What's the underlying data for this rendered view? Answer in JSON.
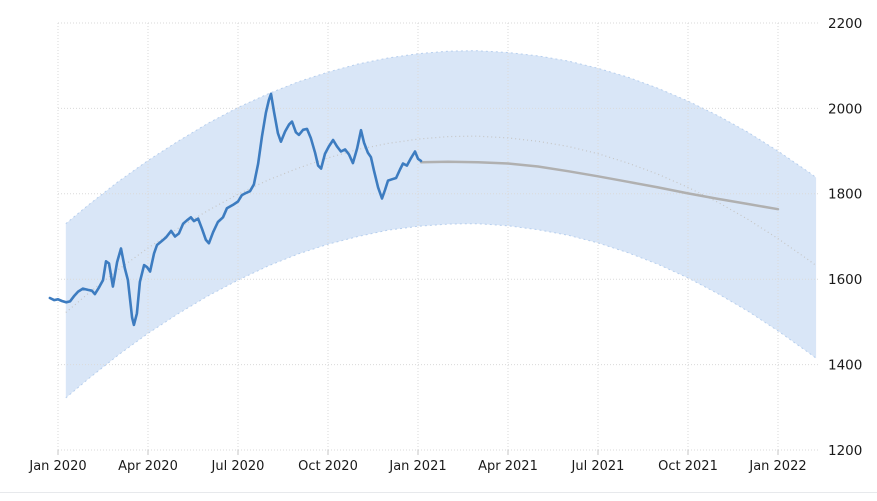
{
  "chart": {
    "name": "price-forecast-chart",
    "colors": {
      "background": "#ffffff",
      "history_line": "#3d7cc0",
      "forecast_line": "#b0b0b0",
      "trend_line": "#c6c6c6",
      "band_fill": "#d9e6f7",
      "band_edge": "#b7cfee",
      "grid": "#dadada",
      "tick": "#c5c5c5",
      "text": "#1a1a1a",
      "divider": "#e7e9ec"
    }
  },
  "chart_data": {
    "type": "line",
    "title": "",
    "xlabel": "",
    "ylabel": "",
    "legend": "none",
    "grid": "dotted",
    "x_unit": "months since Jan 2020",
    "ylim": [
      1200,
      2200
    ],
    "xlim": [
      -1,
      26.6
    ],
    "y_ticks": [
      1200,
      1400,
      1600,
      1800,
      2000,
      2200
    ],
    "x_ticks": [
      {
        "m": 0,
        "label": "Jan 2020"
      },
      {
        "m": 3,
        "label": "Apr 2020"
      },
      {
        "m": 6,
        "label": "Jul 2020"
      },
      {
        "m": 9,
        "label": "Oct 2020"
      },
      {
        "m": 12,
        "label": "Jan 2021"
      },
      {
        "m": 15,
        "label": "Apr 2021"
      },
      {
        "m": 18,
        "label": "Jul 2021"
      },
      {
        "m": 21,
        "label": "Oct 2021"
      },
      {
        "m": 24,
        "label": "Jan 2022"
      }
    ],
    "series": [
      {
        "name": "historical-price",
        "type": "line",
        "points": [
          [
            -0.27,
            1556
          ],
          [
            -0.13,
            1551
          ],
          [
            0,
            1553
          ],
          [
            0.13,
            1549
          ],
          [
            0.27,
            1546
          ],
          [
            0.4,
            1548
          ],
          [
            0.53,
            1560
          ],
          [
            0.67,
            1571
          ],
          [
            0.83,
            1578
          ],
          [
            1.0,
            1575
          ],
          [
            1.13,
            1573
          ],
          [
            1.23,
            1565
          ],
          [
            1.37,
            1581
          ],
          [
            1.5,
            1598
          ],
          [
            1.6,
            1642
          ],
          [
            1.7,
            1637
          ],
          [
            1.83,
            1583
          ],
          [
            1.97,
            1640
          ],
          [
            2.1,
            1672
          ],
          [
            2.23,
            1625
          ],
          [
            2.33,
            1598
          ],
          [
            2.47,
            1510
          ],
          [
            2.53,
            1493
          ],
          [
            2.63,
            1520
          ],
          [
            2.73,
            1594
          ],
          [
            2.87,
            1633
          ],
          [
            2.97,
            1628
          ],
          [
            3.07,
            1618
          ],
          [
            3.2,
            1660
          ],
          [
            3.3,
            1680
          ],
          [
            3.47,
            1690
          ],
          [
            3.6,
            1698
          ],
          [
            3.77,
            1713
          ],
          [
            3.9,
            1700
          ],
          [
            4.03,
            1707
          ],
          [
            4.17,
            1730
          ],
          [
            4.3,
            1738
          ],
          [
            4.43,
            1745
          ],
          [
            4.53,
            1736
          ],
          [
            4.67,
            1742
          ],
          [
            4.8,
            1718
          ],
          [
            4.93,
            1692
          ],
          [
            5.03,
            1684
          ],
          [
            5.17,
            1710
          ],
          [
            5.33,
            1734
          ],
          [
            5.5,
            1745
          ],
          [
            5.63,
            1766
          ],
          [
            5.83,
            1774
          ],
          [
            6.0,
            1782
          ],
          [
            6.13,
            1797
          ],
          [
            6.27,
            1802
          ],
          [
            6.4,
            1806
          ],
          [
            6.53,
            1822
          ],
          [
            6.67,
            1870
          ],
          [
            6.8,
            1935
          ],
          [
            6.93,
            1990
          ],
          [
            7.03,
            2020
          ],
          [
            7.1,
            2034
          ],
          [
            7.2,
            1992
          ],
          [
            7.33,
            1942
          ],
          [
            7.43,
            1922
          ],
          [
            7.57,
            1946
          ],
          [
            7.7,
            1962
          ],
          [
            7.8,
            1969
          ],
          [
            7.93,
            1944
          ],
          [
            8.03,
            1938
          ],
          [
            8.17,
            1950
          ],
          [
            8.3,
            1952
          ],
          [
            8.43,
            1930
          ],
          [
            8.57,
            1896
          ],
          [
            8.67,
            1866
          ],
          [
            8.77,
            1859
          ],
          [
            8.9,
            1894
          ],
          [
            9.03,
            1911
          ],
          [
            9.17,
            1926
          ],
          [
            9.3,
            1911
          ],
          [
            9.43,
            1899
          ],
          [
            9.57,
            1904
          ],
          [
            9.7,
            1892
          ],
          [
            9.83,
            1872
          ],
          [
            9.97,
            1906
          ],
          [
            10.1,
            1949
          ],
          [
            10.2,
            1920
          ],
          [
            10.33,
            1896
          ],
          [
            10.43,
            1886
          ],
          [
            10.53,
            1855
          ],
          [
            10.67,
            1815
          ],
          [
            10.8,
            1789
          ],
          [
            10.9,
            1809
          ],
          [
            11.0,
            1831
          ],
          [
            11.13,
            1834
          ],
          [
            11.27,
            1837
          ],
          [
            11.4,
            1857
          ],
          [
            11.5,
            1871
          ],
          [
            11.63,
            1866
          ],
          [
            11.77,
            1884
          ],
          [
            11.9,
            1899
          ],
          [
            12.0,
            1882
          ],
          [
            12.1,
            1877
          ]
        ]
      },
      {
        "name": "forecast",
        "type": "line",
        "points": [
          [
            12.1,
            1874
          ],
          [
            13,
            1875
          ],
          [
            14,
            1874
          ],
          [
            15,
            1871
          ],
          [
            16,
            1864
          ],
          [
            17,
            1853
          ],
          [
            18,
            1841
          ],
          [
            19,
            1828
          ],
          [
            20,
            1815
          ],
          [
            21,
            1801
          ],
          [
            22,
            1788
          ],
          [
            23,
            1776
          ],
          [
            24,
            1764
          ]
        ]
      },
      {
        "name": "forecast-trend",
        "type": "line",
        "style": "dotted",
        "points": [
          [
            0.26,
            1522
          ],
          [
            1,
            1566
          ],
          [
            2,
            1622
          ],
          [
            3,
            1673
          ],
          [
            4,
            1719
          ],
          [
            5,
            1761
          ],
          [
            6,
            1799
          ],
          [
            7,
            1832
          ],
          [
            8,
            1860
          ],
          [
            9,
            1884
          ],
          [
            10,
            1904
          ],
          [
            11,
            1918
          ],
          [
            12,
            1928
          ],
          [
            13,
            1934
          ],
          [
            13.73,
            1935
          ],
          [
            14,
            1935
          ],
          [
            15,
            1931
          ],
          [
            16,
            1923
          ],
          [
            17,
            1911
          ],
          [
            18,
            1894
          ],
          [
            19,
            1872
          ],
          [
            20,
            1846
          ],
          [
            21,
            1815
          ],
          [
            22,
            1780
          ],
          [
            23,
            1740
          ],
          [
            24,
            1695
          ],
          [
            25,
            1646
          ],
          [
            25.27,
            1632
          ]
        ]
      },
      {
        "name": "confidence-band",
        "type": "band",
        "top": [
          [
            0.26,
            1730
          ],
          [
            1,
            1773
          ],
          [
            2,
            1828
          ],
          [
            3,
            1878
          ],
          [
            4,
            1923
          ],
          [
            5,
            1965
          ],
          [
            6,
            2002
          ],
          [
            7,
            2034
          ],
          [
            8,
            2062
          ],
          [
            9,
            2085
          ],
          [
            10,
            2104
          ],
          [
            11,
            2118
          ],
          [
            12,
            2128
          ],
          [
            13,
            2134
          ],
          [
            13.73,
            2135
          ],
          [
            14,
            2135
          ],
          [
            15,
            2131
          ],
          [
            16,
            2123
          ],
          [
            17,
            2111
          ],
          [
            18,
            2094
          ],
          [
            19,
            2073
          ],
          [
            20,
            2047
          ],
          [
            21,
            2017
          ],
          [
            22,
            1983
          ],
          [
            23,
            1944
          ],
          [
            24,
            1900
          ],
          [
            25,
            1852
          ],
          [
            25.27,
            1838
          ]
        ],
        "bottom": [
          [
            0.26,
            1322
          ],
          [
            1,
            1366
          ],
          [
            2,
            1422
          ],
          [
            3,
            1473
          ],
          [
            4,
            1519
          ],
          [
            5,
            1561
          ],
          [
            6,
            1598
          ],
          [
            7,
            1631
          ],
          [
            8,
            1659
          ],
          [
            9,
            1682
          ],
          [
            10,
            1700
          ],
          [
            11,
            1715
          ],
          [
            12,
            1724
          ],
          [
            13,
            1729
          ],
          [
            13.57,
            1730
          ],
          [
            14,
            1730
          ],
          [
            15,
            1725
          ],
          [
            16,
            1716
          ],
          [
            17,
            1703
          ],
          [
            18,
            1685
          ],
          [
            19,
            1662
          ],
          [
            20,
            1635
          ],
          [
            21,
            1603
          ],
          [
            22,
            1566
          ],
          [
            23,
            1525
          ],
          [
            24,
            1479
          ],
          [
            25,
            1429
          ],
          [
            25.27,
            1415
          ]
        ]
      }
    ]
  }
}
